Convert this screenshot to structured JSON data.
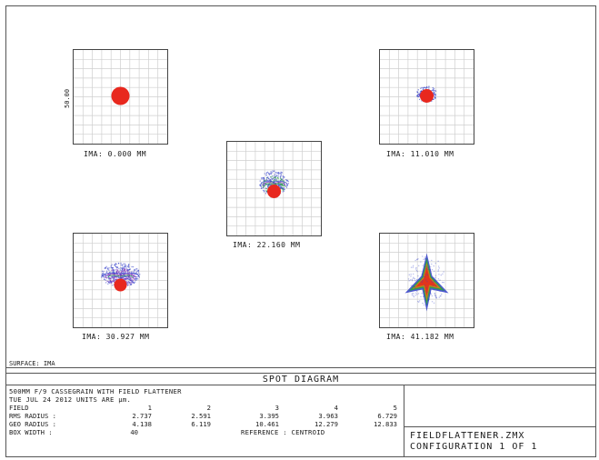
{
  "spots": [
    {
      "name": "spot-field-1",
      "label": "IMA: 0.000 MM",
      "pattern": "round"
    },
    {
      "name": "spot-field-2",
      "label": "IMA: 11.010 MM",
      "pattern": "small-comatic"
    },
    {
      "name": "spot-field-3",
      "label": "IMA: 22.160 MM",
      "pattern": "comatic"
    },
    {
      "name": "spot-field-4",
      "label": "IMA: 30.927 MM",
      "pattern": "wide-comatic"
    },
    {
      "name": "spot-field-5",
      "label": "IMA: 41.182 MM",
      "pattern": "arrow"
    }
  ],
  "scale_bar_label": "50.00",
  "surface_label": "SURFACE: IMA",
  "title": "SPOT DIAGRAM",
  "info": {
    "line1": "500MM F/9 CASSEGRAIN WITH FIELD FLATTENER",
    "line2": "TUE JUL 24 2012   UNITS ARE µm.",
    "row_field_label": "FIELD",
    "row_rms_label": "RMS RADIUS :",
    "row_geo_label": "GEO RADIUS :",
    "row_box_label": "BOX WIDTH  :",
    "fields": [
      "1",
      "2",
      "3",
      "4",
      "5"
    ],
    "rms": [
      "2.737",
      "2.591",
      "3.395",
      "3.963",
      "6.729"
    ],
    "geo": [
      "4.138",
      "6.119",
      "10.461",
      "12.279",
      "12.833"
    ],
    "box_width": "40",
    "reference": "REFERENCE  : CENTROID"
  },
  "side": {
    "line1": "FIELDFLATTENER.ZMX",
    "line2": "CONFIGURATION 1 OF 1"
  },
  "colors": {
    "red": "#e8281e",
    "blue": "#2f3cc8",
    "green": "#2aa83a",
    "purple": "#8a2fb8",
    "orange": "#e07a10",
    "grid": "#cfcfcf"
  }
}
